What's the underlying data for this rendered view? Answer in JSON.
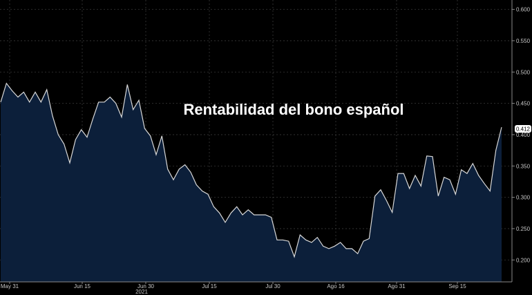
{
  "chart_data": {
    "type": "area",
    "title": "Rentabilidad del bono español",
    "xlabel": "",
    "ylabel": "",
    "ylim": [
      0.165,
      0.615
    ],
    "y_ticks": [
      0.2,
      0.25,
      0.3,
      0.35,
      0.4,
      0.45,
      0.5,
      0.55,
      0.6
    ],
    "x_ticks": [
      "May 31",
      "Jun 15",
      "Jun 30",
      "Jul 15",
      "Jul 30",
      "Ago 16",
      "Ago 31",
      "Sep 15"
    ],
    "x_year_label": "2021",
    "last_value_label": "0.412",
    "grid": true,
    "colors": {
      "background": "#000000",
      "line": "#d9d9d9",
      "fill": "#0c1f3a",
      "grid": "#3a3a3a",
      "axis_text": "#c8c8c8"
    },
    "values": [
      0.452,
      0.482,
      0.47,
      0.46,
      0.468,
      0.452,
      0.468,
      0.452,
      0.472,
      0.43,
      0.4,
      0.385,
      0.355,
      0.392,
      0.408,
      0.396,
      0.425,
      0.452,
      0.452,
      0.46,
      0.45,
      0.428,
      0.48,
      0.44,
      0.455,
      0.41,
      0.398,
      0.368,
      0.398,
      0.345,
      0.328,
      0.345,
      0.352,
      0.34,
      0.32,
      0.31,
      0.305,
      0.285,
      0.275,
      0.26,
      0.275,
      0.285,
      0.272,
      0.28,
      0.272,
      0.272,
      0.272,
      0.268,
      0.232,
      0.232,
      0.23,
      0.205,
      0.24,
      0.232,
      0.228,
      0.236,
      0.222,
      0.218,
      0.222,
      0.228,
      0.218,
      0.218,
      0.21,
      0.23,
      0.234,
      0.302,
      0.312,
      0.295,
      0.276,
      0.338,
      0.338,
      0.314,
      0.335,
      0.318,
      0.366,
      0.365,
      0.302,
      0.332,
      0.328,
      0.305,
      0.344,
      0.338,
      0.354,
      0.335,
      0.322,
      0.31,
      0.375,
      0.412
    ]
  }
}
